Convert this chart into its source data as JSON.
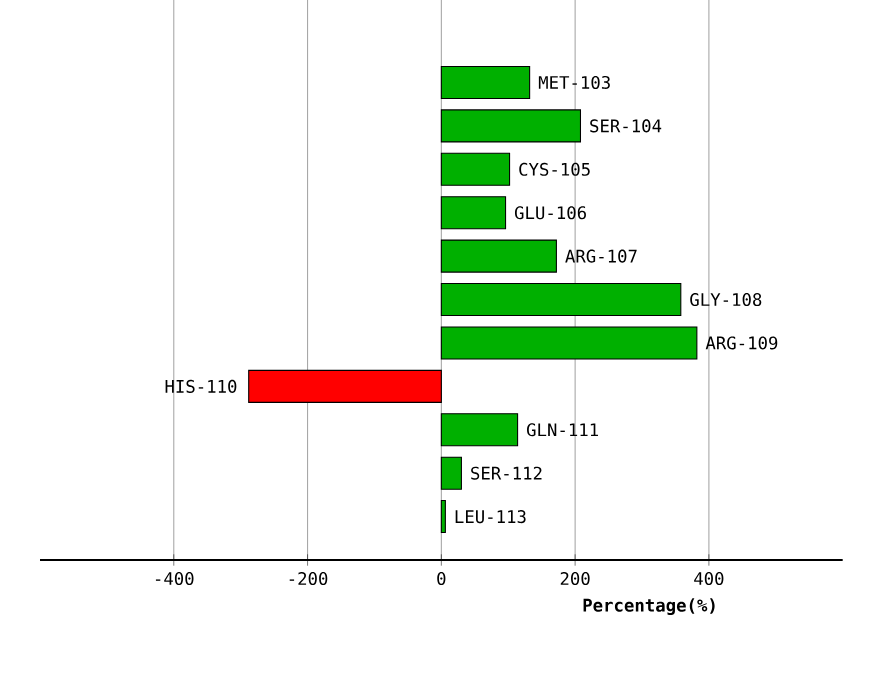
{
  "chart_data": {
    "type": "bar",
    "orientation": "horizontal",
    "xlabel": "Percentage(%)",
    "categories": [
      "MET-103",
      "SER-104",
      "CYS-105",
      "GLU-106",
      "ARG-107",
      "GLY-108",
      "ARG-109",
      "HIS-110",
      "GLN-111",
      "SER-112",
      "LEU-113"
    ],
    "values": [
      132,
      208,
      102,
      96,
      172,
      358,
      382,
      -288,
      114,
      30,
      6
    ],
    "colors": [
      "#00b000",
      "#00b000",
      "#00b000",
      "#00b000",
      "#00b000",
      "#00b000",
      "#00b000",
      "#ff0000",
      "#00b000",
      "#00b000",
      "#00b000"
    ],
    "xlim": [
      -600,
      600
    ],
    "xticks": [
      -400,
      -200,
      0,
      200,
      400
    ],
    "grid": "x"
  }
}
